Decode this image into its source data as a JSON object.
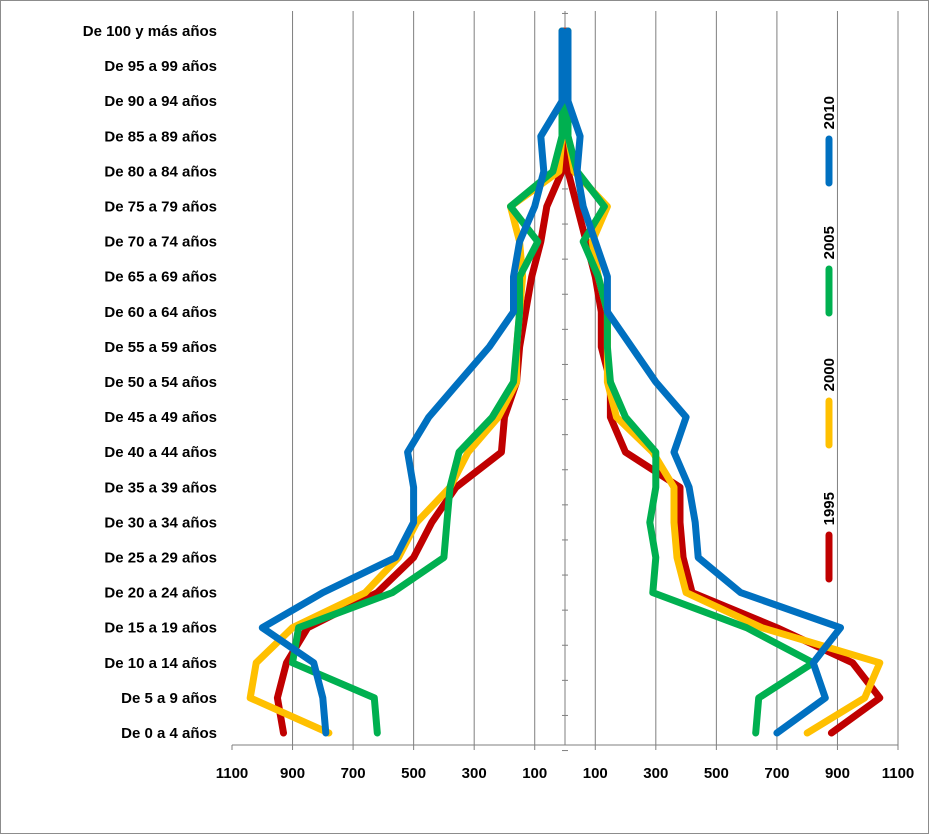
{
  "chart_data": {
    "type": "line",
    "orientation": "population-pyramid",
    "x_tick_labels": [
      "1100",
      "900",
      "700",
      "500",
      "300",
      "100",
      "100",
      "300",
      "500",
      "700",
      "900",
      "1100"
    ],
    "xlim": [
      -1100,
      1100
    ],
    "categories": [
      "De 100 y más años",
      "De 95 a 99 años",
      "De 90 a 94 años",
      "De 85 a 89 años",
      "De 80 a 84 años",
      "De 75 a 79 años",
      "De 70 a 74 años",
      "De 65 a 69 años",
      "De 60 a 64 años",
      "De 55 a 59 años",
      "De 50 a 54 años",
      "De 45 a 49 años",
      "De 40 a 44 años",
      "De 35 a 39 años",
      "De 30 a 34 años",
      "De 25 a 29 años",
      "De 20 a 24 años",
      "De 15 a 19 años",
      "De 10 a 14 años",
      "De 5 a 9 años",
      "De 0 a 4 años"
    ],
    "grid": true,
    "legend_position": "right",
    "series": [
      {
        "name": "1995",
        "color": "#c00000",
        "left": [
          -5,
          -5,
          -5,
          -10,
          -10,
          -60,
          -80,
          -110,
          -130,
          -150,
          -160,
          -200,
          -210,
          -360,
          -440,
          -500,
          -620,
          -850,
          -920,
          -950,
          -930
        ],
        "right": [
          5,
          5,
          5,
          5,
          10,
          40,
          70,
          100,
          120,
          120,
          150,
          150,
          200,
          380,
          380,
          390,
          420,
          700,
          950,
          1040,
          880
        ]
      },
      {
        "name": "2000",
        "color": "#ffc000",
        "left": [
          -10,
          -10,
          -10,
          -10,
          -20,
          -180,
          -150,
          -140,
          -150,
          -160,
          -160,
          -220,
          -320,
          -380,
          -490,
          -550,
          -660,
          -900,
          -1020,
          -1040,
          -780
        ],
        "right": [
          10,
          10,
          10,
          10,
          30,
          140,
          90,
          110,
          140,
          140,
          140,
          170,
          290,
          360,
          360,
          370,
          400,
          650,
          1040,
          990,
          800
        ]
      },
      {
        "name": "2005",
        "color": "#00b050",
        "left": [
          -10,
          -10,
          -10,
          -10,
          -40,
          -180,
          -90,
          -150,
          -150,
          -160,
          -170,
          -240,
          -350,
          -380,
          -390,
          -400,
          -570,
          -880,
          -900,
          -630,
          -620
        ],
        "right": [
          10,
          10,
          10,
          10,
          40,
          130,
          60,
          110,
          140,
          140,
          150,
          200,
          300,
          300,
          280,
          300,
          290,
          600,
          820,
          640,
          630
        ]
      },
      {
        "name": "2010",
        "color": "#0070c0",
        "left": [
          -10,
          -10,
          -10,
          -80,
          -70,
          -100,
          -150,
          -170,
          -170,
          -250,
          -350,
          -450,
          -520,
          -500,
          -500,
          -560,
          -800,
          -1000,
          -830,
          -800,
          -790
        ],
        "right": [
          10,
          10,
          10,
          50,
          40,
          60,
          100,
          140,
          140,
          220,
          300,
          400,
          360,
          410,
          430,
          440,
          580,
          910,
          820,
          860,
          700
        ]
      }
    ]
  }
}
